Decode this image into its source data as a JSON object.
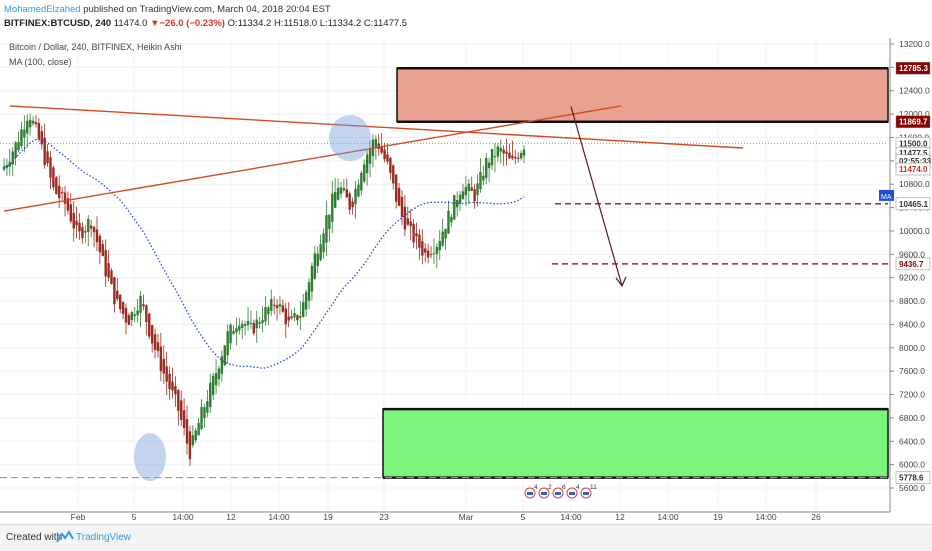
{
  "header": {
    "author": "MohamedElzahed",
    "published_text": " published on TradingView.com, March 04, 2018 20:04 EST",
    "symbol_info": "BITFINEX:BTCUSD, 240",
    "last": "11474.0",
    "change_arrow": "▼",
    "change": "−26.0 (−0.23%)",
    "open": "O:11334.2",
    "high": "H:11518.0",
    "low": "L:11334.2",
    "close": "C:11477.5"
  },
  "legend": {
    "series_title": "Bitcoin / Dollar, 240, BITFINEX, Heikin Ashi",
    "ma_title": "MA (100, close)"
  },
  "footer": {
    "created_with": "Created with",
    "brand": "TradingView"
  },
  "chart_data": {
    "type": "candlestick",
    "chart_style": "Heikin Ashi",
    "timeframe": "240",
    "price_axis_ticks": [
      5600,
      6000,
      6400,
      6800,
      7200,
      7600,
      8000,
      8400,
      8800,
      9200,
      9600,
      10000,
      10400,
      10800,
      11200,
      11600,
      12000,
      12400,
      12800,
      13200
    ],
    "price_axis_labels": [
      "5600.0",
      "6000.0",
      "6400.0",
      "6800.0",
      "7200.0",
      "7600.0",
      "8000.0",
      "8400.0",
      "8800.0",
      "9200.0",
      "9600.0",
      "10000.0",
      "10400.0",
      "10800.0",
      "11200.0",
      "11600.0",
      "12000.0",
      "12400.0",
      "12800.0",
      "13200.0"
    ],
    "time_axis_labels": [
      "Feb",
      "5",
      "14:00",
      "12",
      "14:00",
      "19",
      "23",
      "Mar",
      "5",
      "14:00",
      "12",
      "14:00",
      "19",
      "14:00",
      "26"
    ],
    "ylim": [
      5300,
      13400
    ],
    "price_tags": [
      {
        "label": "12785.3",
        "value": 12785.3,
        "bg": "#8b0000",
        "fg": "#ffffff"
      },
      {
        "label": "11869.7",
        "value": 11869.7,
        "bg": "#8b0000",
        "fg": "#ffffff"
      },
      {
        "label": "11500.0",
        "value": 11500.0,
        "bg": "#ffffff",
        "fg": "#333333"
      },
      {
        "label": "11477.5",
        "value": 11330,
        "bg": "#ffffff",
        "fg": "#333333"
      },
      {
        "label": "02:55:33",
        "value": 11200,
        "bg": "#ffffff",
        "fg": "#333333"
      },
      {
        "label": "11474.0",
        "value": 11060,
        "bg": "#ffffff",
        "fg": "#c0392b"
      },
      {
        "label": "10465.1",
        "value": 10465.1,
        "bg": "#ffffff",
        "fg": "#333333"
      },
      {
        "label": "9436.7",
        "value": 9436.7,
        "bg": "#ffffff",
        "fg": "#8b0000"
      },
      {
        "label": "5778.6",
        "value": 5778.6,
        "bg": "#ffffff",
        "fg": "#333333"
      }
    ],
    "ma_badge": "MA",
    "zones": [
      {
        "name": "resistance",
        "from": 11869.7,
        "to": 12785.3,
        "color": "#e8a090"
      },
      {
        "name": "support",
        "from": 5778.6,
        "to": 6950,
        "color": "#7cf57c"
      }
    ],
    "levels": [
      10465.1,
      9436.7,
      11500.0,
      5778.6
    ],
    "event_markers": [
      "4",
      "2",
      "6",
      "4",
      "11"
    ],
    "ohlc_sample": [
      [
        11050,
        11250,
        10800,
        11100
      ],
      [
        11100,
        11600,
        11000,
        11500
      ],
      [
        11500,
        12200,
        11400,
        12050
      ],
      [
        12050,
        12150,
        11300,
        11450
      ],
      [
        11450,
        11600,
        10600,
        10700
      ],
      [
        10700,
        10950,
        10300,
        10450
      ],
      [
        10450,
        10600,
        9800,
        9900
      ],
      [
        9900,
        10300,
        9700,
        10200
      ],
      [
        10200,
        10450,
        9300,
        9450
      ],
      [
        9450,
        9600,
        8700,
        8800
      ],
      [
        8800,
        9100,
        8300,
        8450
      ],
      [
        8450,
        8900,
        8200,
        8850
      ],
      [
        8850,
        9000,
        8000,
        8100
      ],
      [
        8100,
        8400,
        7400,
        7500
      ],
      [
        7500,
        7900,
        6900,
        7000
      ],
      [
        7000,
        7200,
        6000,
        6200
      ],
      [
        6200,
        7000,
        6100,
        6900
      ],
      [
        6900,
        7600,
        6800,
        7500
      ],
      [
        7500,
        8300,
        7300,
        8200
      ],
      [
        8200,
        8700,
        7900,
        8500
      ],
      [
        8500,
        8900,
        8100,
        8300
      ],
      [
        8300,
        8700,
        8000,
        8600
      ],
      [
        8600,
        9000,
        8400,
        8800
      ],
      [
        8800,
        9000,
        8200,
        8400
      ],
      [
        8400,
        8700,
        8100,
        8600
      ],
      [
        8600,
        9600,
        8500,
        9500
      ],
      [
        9500,
        10300,
        9400,
        10200
      ],
      [
        10200,
        10900,
        10000,
        10800
      ],
      [
        10800,
        11100,
        10300,
        10400
      ],
      [
        10400,
        11300,
        10300,
        11200
      ],
      [
        11200,
        11800,
        10900,
        11600
      ],
      [
        11600,
        11900,
        11000,
        11100
      ],
      [
        11100,
        11300,
        10200,
        10300
      ],
      [
        10300,
        10500,
        9800,
        9900
      ],
      [
        9900,
        10100,
        9500,
        9600
      ],
      [
        9600,
        9900,
        9400,
        9800
      ],
      [
        9800,
        10400,
        9700,
        10300
      ],
      [
        10300,
        10900,
        10200,
        10800
      ],
      [
        10800,
        11000,
        10400,
        10600
      ],
      [
        10600,
        11300,
        10500,
        11200
      ],
      [
        11200,
        11500,
        10900,
        11400
      ],
      [
        11400,
        11600,
        11050,
        11150
      ],
      [
        11150,
        11550,
        11050,
        11480
      ]
    ],
    "annotations": {
      "trendline_upper": "downward resistance line",
      "trendline_lower": "ascending support line",
      "arrow": "projected move down"
    }
  }
}
